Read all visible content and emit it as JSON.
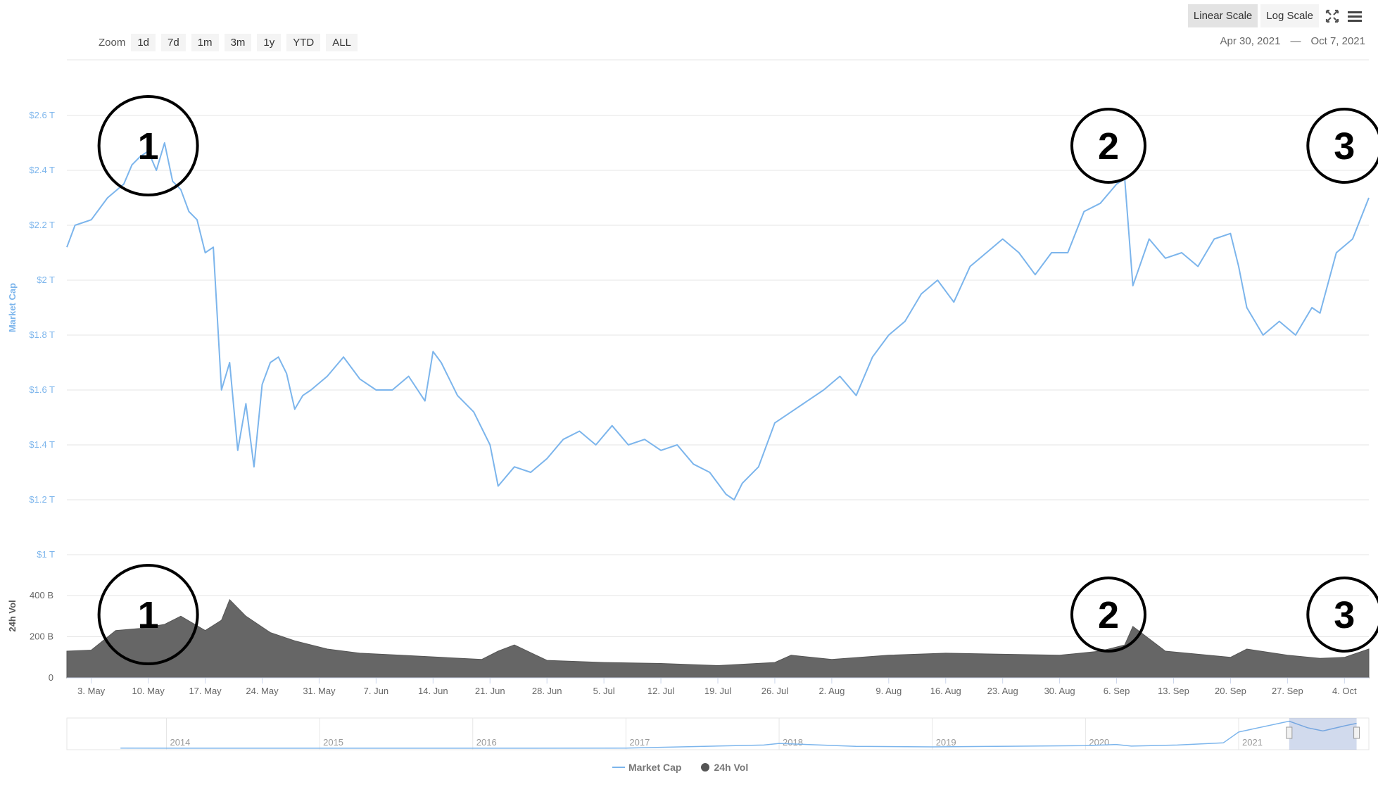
{
  "toolbar": {
    "zoom_label": "Zoom",
    "zoom_options": [
      "1d",
      "7d",
      "1m",
      "3m",
      "1y",
      "YTD",
      "ALL"
    ],
    "scale_options": [
      "Linear Scale",
      "Log Scale"
    ],
    "active_scale": "Linear Scale",
    "range_from": "Apr 30, 2021",
    "range_sep": "—",
    "range_to": "Oct 7, 2021"
  },
  "chart_data": {
    "type": "line",
    "colors": {
      "market_cap": "#7cb5ec",
      "volume": "#666666",
      "annotation": "#000000"
    },
    "y_axis": {
      "label": "Market Cap",
      "ticks": [
        "$1 T",
        "$1.2 T",
        "$1.4 T",
        "$1.6 T",
        "$1.8 T",
        "$2 T",
        "$2.2 T",
        "$2.4 T",
        "$2.6 T"
      ],
      "ylim": [
        1.0,
        2.6
      ],
      "unit": "trillion USD"
    },
    "vol_axis": {
      "label": "24h Vol",
      "ticks": [
        "0",
        "200 B",
        "400 B"
      ],
      "ylim": [
        0,
        400
      ],
      "unit": "billion USD"
    },
    "x_axis": {
      "ticks": [
        "3. May",
        "10. May",
        "17. May",
        "24. May",
        "31. May",
        "7. Jun",
        "14. Jun",
        "21. Jun",
        "28. Jun",
        "5. Jul",
        "12. Jul",
        "19. Jul",
        "26. Jul",
        "2. Aug",
        "9. Aug",
        "16. Aug",
        "23. Aug",
        "30. Aug",
        "6. Sep",
        "13. Sep",
        "20. Sep",
        "27. Sep",
        "4. Oct"
      ],
      "start": "2021-04-30",
      "end": "2021-10-07"
    },
    "series": [
      {
        "name": "Market Cap",
        "dates": [
          "2021-04-30",
          "2021-05-01",
          "2021-05-03",
          "2021-05-05",
          "2021-05-07",
          "2021-05-08",
          "2021-05-09",
          "2021-05-10",
          "2021-05-11",
          "2021-05-12",
          "2021-05-13",
          "2021-05-14",
          "2021-05-15",
          "2021-05-16",
          "2021-05-17",
          "2021-05-18",
          "2021-05-19",
          "2021-05-20",
          "2021-05-21",
          "2021-05-22",
          "2021-05-23",
          "2021-05-24",
          "2021-05-25",
          "2021-05-26",
          "2021-05-27",
          "2021-05-28",
          "2021-05-29",
          "2021-05-30",
          "2021-06-01",
          "2021-06-03",
          "2021-06-05",
          "2021-06-07",
          "2021-06-09",
          "2021-06-11",
          "2021-06-13",
          "2021-06-14",
          "2021-06-15",
          "2021-06-17",
          "2021-06-19",
          "2021-06-21",
          "2021-06-22",
          "2021-06-24",
          "2021-06-26",
          "2021-06-28",
          "2021-06-30",
          "2021-07-02",
          "2021-07-04",
          "2021-07-06",
          "2021-07-08",
          "2021-07-10",
          "2021-07-12",
          "2021-07-14",
          "2021-07-16",
          "2021-07-18",
          "2021-07-20",
          "2021-07-21",
          "2021-07-22",
          "2021-07-24",
          "2021-07-26",
          "2021-07-28",
          "2021-07-30",
          "2021-08-01",
          "2021-08-03",
          "2021-08-05",
          "2021-08-07",
          "2021-08-09",
          "2021-08-11",
          "2021-08-13",
          "2021-08-15",
          "2021-08-17",
          "2021-08-19",
          "2021-08-21",
          "2021-08-23",
          "2021-08-25",
          "2021-08-27",
          "2021-08-29",
          "2021-08-31",
          "2021-09-02",
          "2021-09-04",
          "2021-09-06",
          "2021-09-07",
          "2021-09-08",
          "2021-09-10",
          "2021-09-12",
          "2021-09-14",
          "2021-09-16",
          "2021-09-18",
          "2021-09-20",
          "2021-09-21",
          "2021-09-22",
          "2021-09-24",
          "2021-09-26",
          "2021-09-28",
          "2021-09-30",
          "2021-10-01",
          "2021-10-03",
          "2021-10-05",
          "2021-10-07"
        ],
        "values": [
          2.12,
          2.2,
          2.22,
          2.3,
          2.35,
          2.42,
          2.45,
          2.47,
          2.4,
          2.5,
          2.36,
          2.33,
          2.25,
          2.22,
          2.1,
          2.12,
          1.6,
          1.7,
          1.38,
          1.55,
          1.32,
          1.62,
          1.7,
          1.72,
          1.66,
          1.53,
          1.58,
          1.6,
          1.65,
          1.72,
          1.64,
          1.6,
          1.6,
          1.65,
          1.56,
          1.74,
          1.7,
          1.58,
          1.52,
          1.4,
          1.25,
          1.32,
          1.3,
          1.35,
          1.42,
          1.45,
          1.4,
          1.47,
          1.4,
          1.42,
          1.38,
          1.4,
          1.33,
          1.3,
          1.22,
          1.2,
          1.26,
          1.32,
          1.48,
          1.52,
          1.56,
          1.6,
          1.65,
          1.58,
          1.72,
          1.8,
          1.85,
          1.95,
          2.0,
          1.92,
          2.05,
          2.1,
          2.15,
          2.1,
          2.02,
          2.1,
          2.1,
          2.25,
          2.28,
          2.35,
          2.37,
          1.98,
          2.15,
          2.08,
          2.1,
          2.05,
          2.15,
          2.17,
          2.05,
          1.9,
          1.8,
          1.85,
          1.8,
          1.9,
          1.88,
          2.1,
          2.15,
          2.3
        ]
      },
      {
        "name": "24h Vol",
        "dates": [
          "2021-04-30",
          "2021-05-03",
          "2021-05-06",
          "2021-05-09",
          "2021-05-12",
          "2021-05-14",
          "2021-05-17",
          "2021-05-19",
          "2021-05-20",
          "2021-05-22",
          "2021-05-25",
          "2021-05-28",
          "2021-06-01",
          "2021-06-05",
          "2021-06-10",
          "2021-06-15",
          "2021-06-20",
          "2021-06-22",
          "2021-06-24",
          "2021-06-28",
          "2021-07-05",
          "2021-07-12",
          "2021-07-19",
          "2021-07-26",
          "2021-07-28",
          "2021-08-02",
          "2021-08-09",
          "2021-08-16",
          "2021-08-23",
          "2021-08-30",
          "2021-09-04",
          "2021-09-07",
          "2021-09-08",
          "2021-09-12",
          "2021-09-16",
          "2021-09-20",
          "2021-09-22",
          "2021-09-27",
          "2021-10-01",
          "2021-10-04",
          "2021-10-07"
        ],
        "values": [
          130,
          135,
          230,
          240,
          260,
          300,
          230,
          280,
          380,
          300,
          220,
          180,
          140,
          120,
          110,
          100,
          90,
          130,
          160,
          85,
          75,
          70,
          60,
          75,
          110,
          90,
          110,
          120,
          115,
          110,
          130,
          160,
          250,
          130,
          115,
          100,
          140,
          110,
          95,
          100,
          140
        ]
      }
    ],
    "annotations": [
      {
        "label": "1",
        "date": "2021-05-10",
        "chart": "market-cap"
      },
      {
        "label": "1",
        "date": "2021-05-10",
        "chart": "volume"
      },
      {
        "label": "2",
        "date": "2021-09-05",
        "chart": "market-cap"
      },
      {
        "label": "2",
        "date": "2021-09-05",
        "chart": "volume"
      },
      {
        "label": "3",
        "date": "2021-10-04",
        "chart": "market-cap"
      },
      {
        "label": "3",
        "date": "2021-10-04",
        "chart": "volume"
      }
    ],
    "navigator": {
      "year_labels": [
        "2014",
        "2015",
        "2016",
        "2017",
        "2018",
        "2019",
        "2020",
        "2021"
      ],
      "history_values": [
        0.01,
        0.008,
        0.006,
        0.007,
        0.02,
        0.3,
        0.45,
        0.18,
        0.13,
        0.19,
        0.25,
        0.35,
        0.2,
        0.3,
        0.5,
        1.5,
        2.5,
        1.9,
        1.6,
        2.1,
        2.3
      ],
      "history_years": [
        2013.7,
        2014.3,
        2015.0,
        2016.0,
        2017.0,
        2017.9,
        2018.0,
        2018.5,
        2019.0,
        2019.5,
        2020.0,
        2020.2,
        2020.3,
        2020.6,
        2020.9,
        2021.0,
        2021.33,
        2021.45,
        2021.55,
        2021.7,
        2021.77
      ]
    },
    "legend": [
      "Market Cap",
      "24h Vol"
    ],
    "legend_position": "bottom-center",
    "grid": true
  }
}
